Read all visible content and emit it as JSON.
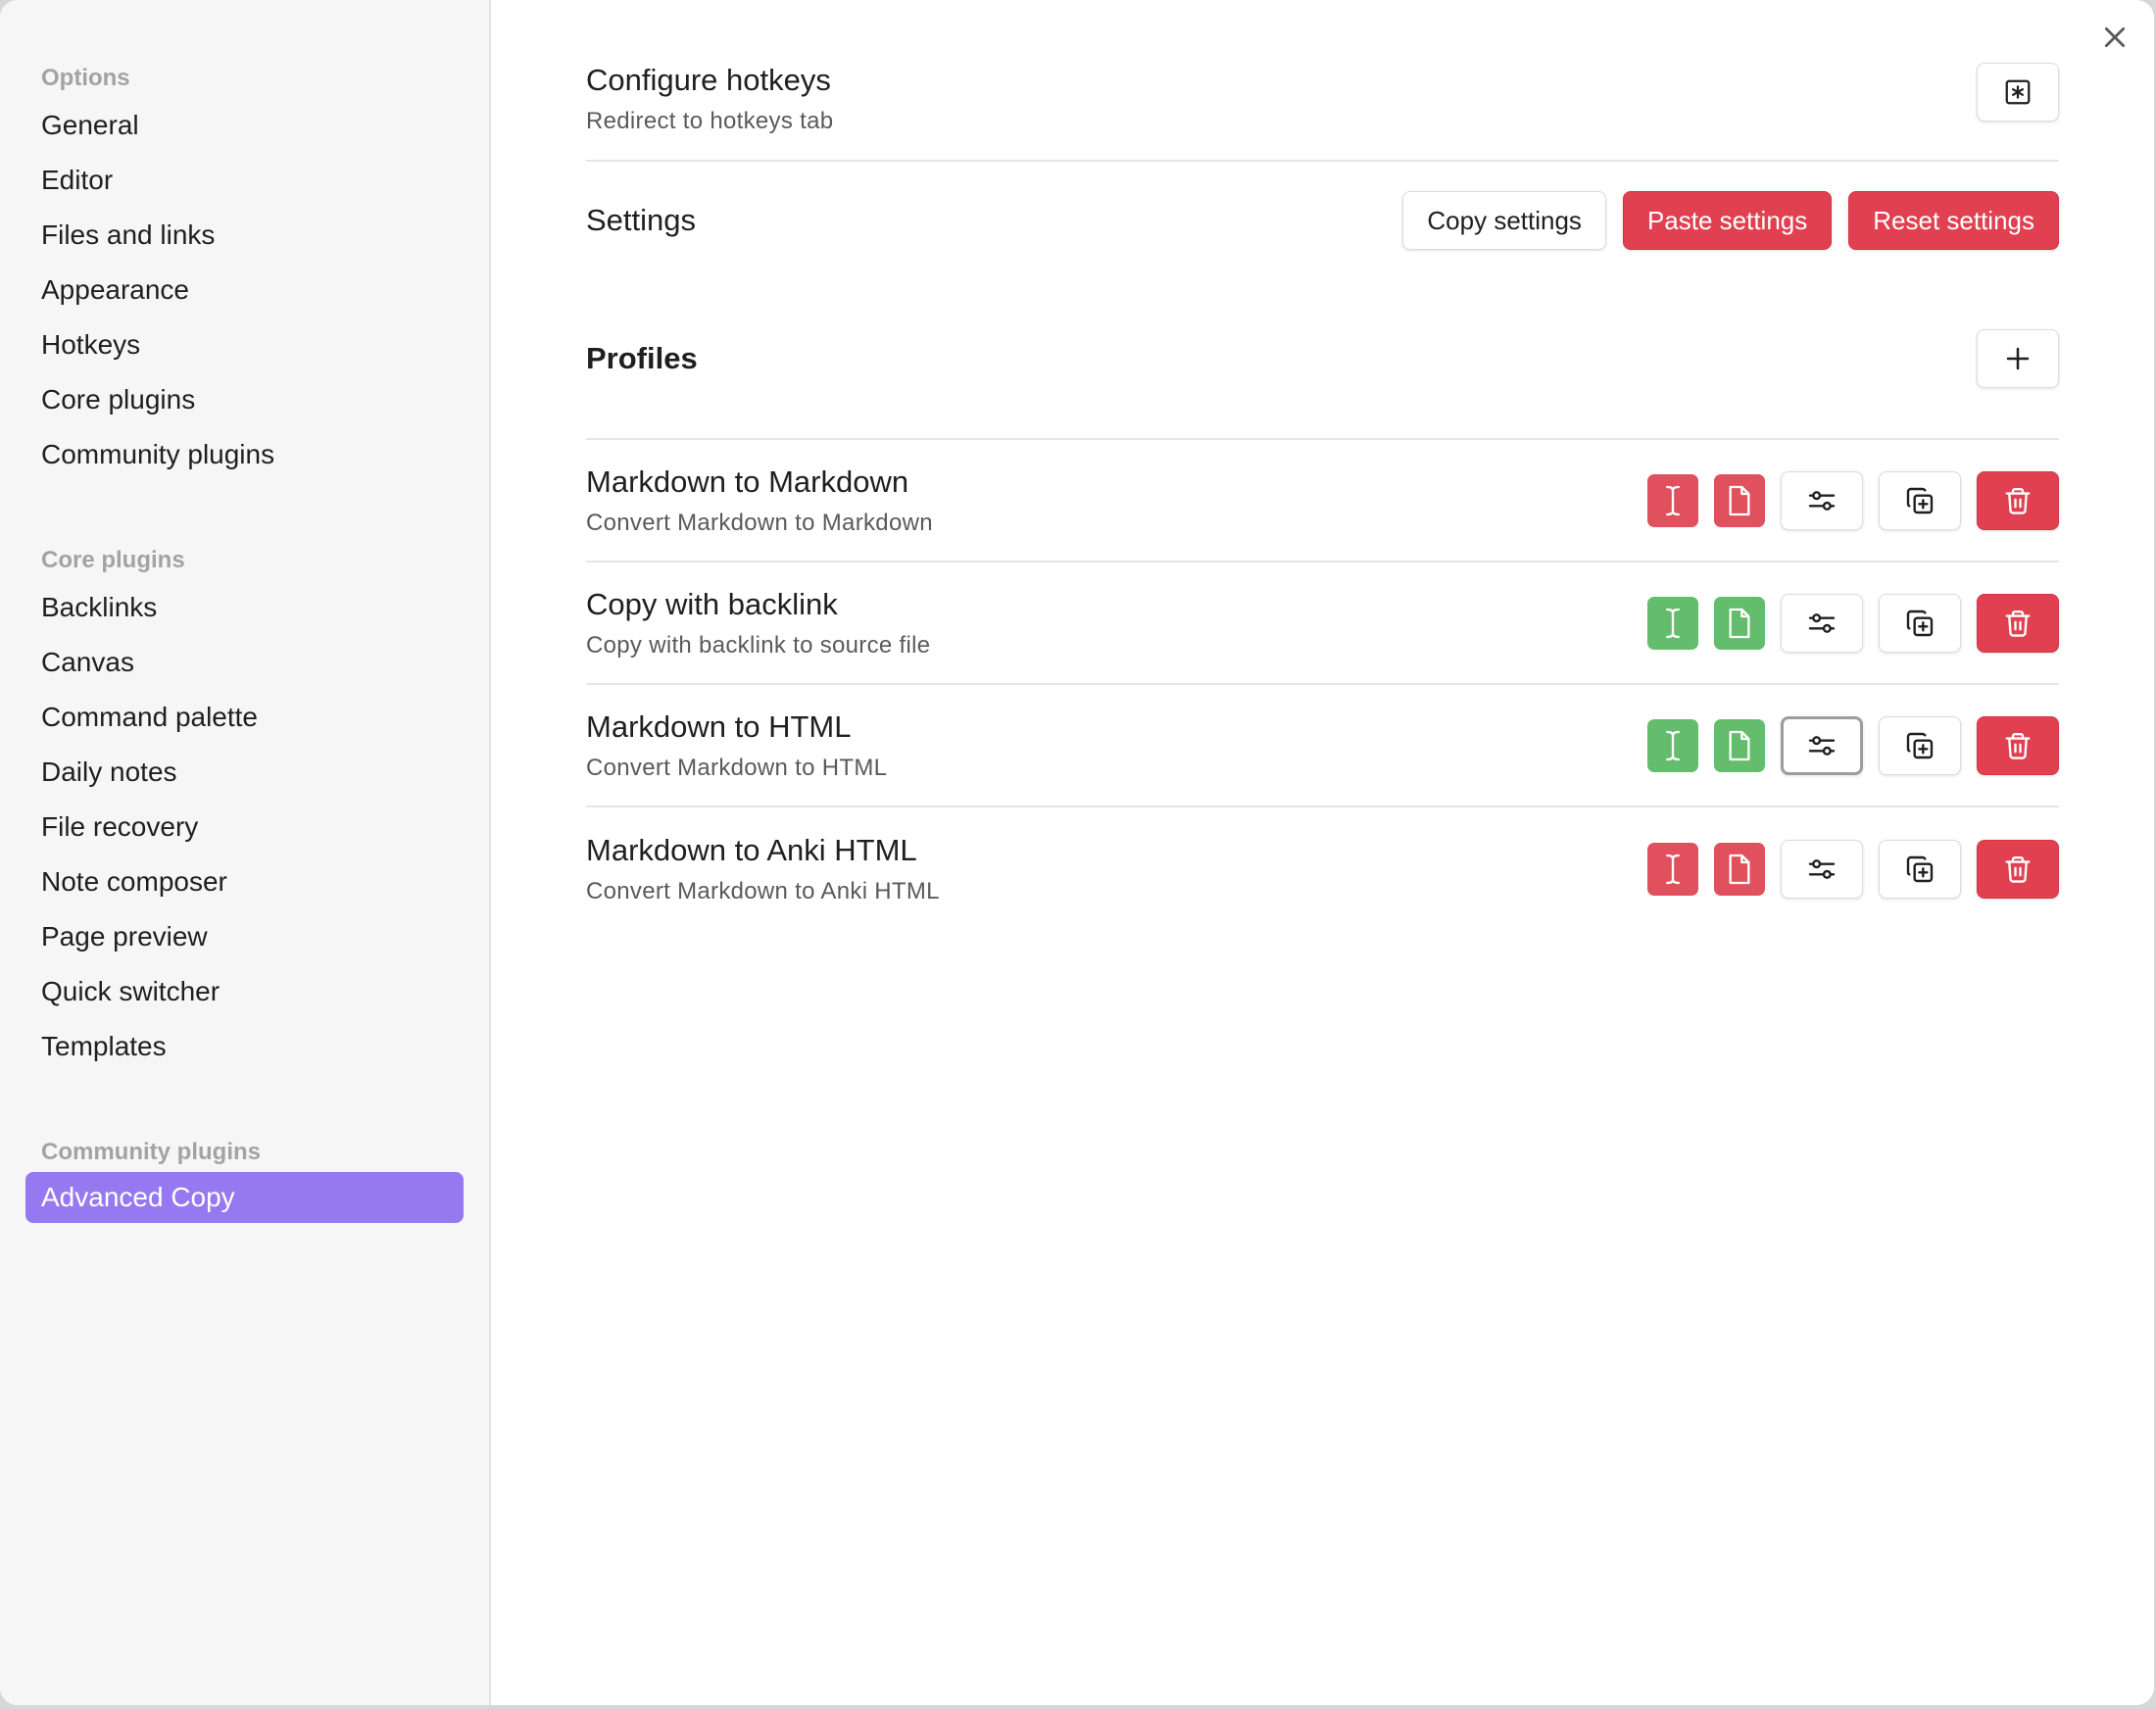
{
  "sidebar": {
    "groups": [
      {
        "title": "Options",
        "items": [
          "General",
          "Editor",
          "Files and links",
          "Appearance",
          "Hotkeys",
          "Core plugins",
          "Community plugins"
        ]
      },
      {
        "title": "Core plugins",
        "items": [
          "Backlinks",
          "Canvas",
          "Command palette",
          "Daily notes",
          "File recovery",
          "Note composer",
          "Page preview",
          "Quick switcher",
          "Templates"
        ]
      },
      {
        "title": "Community plugins",
        "items": [
          "Advanced Copy"
        ],
        "active_index": 0
      }
    ]
  },
  "main": {
    "hotkeys": {
      "title": "Configure hotkeys",
      "desc": "Redirect to hotkeys tab",
      "button_icon": "asterisk-square-icon"
    },
    "settings": {
      "title": "Settings",
      "copy_label": "Copy settings",
      "paste_label": "Paste settings",
      "reset_label": "Reset settings"
    },
    "profiles": {
      "title": "Profiles",
      "add_icon": "plus-icon",
      "items": [
        {
          "title": "Markdown to Markdown",
          "desc": "Convert Markdown to Markdown",
          "selection_enabled": false,
          "file_enabled": false
        },
        {
          "title": "Copy with backlink",
          "desc": "Copy with backlink to source file",
          "selection_enabled": true,
          "file_enabled": true
        },
        {
          "title": "Markdown to HTML",
          "desc": "Convert Markdown to HTML",
          "selection_enabled": true,
          "file_enabled": true
        },
        {
          "title": "Markdown to Anki HTML",
          "desc": "Convert Markdown to Anki HTML",
          "selection_enabled": false,
          "file_enabled": false
        }
      ]
    }
  },
  "colors": {
    "accent": "#9679f0",
    "danger": "#e0404f",
    "enabled": "#63bd6c",
    "disabled": "#e0515d"
  }
}
